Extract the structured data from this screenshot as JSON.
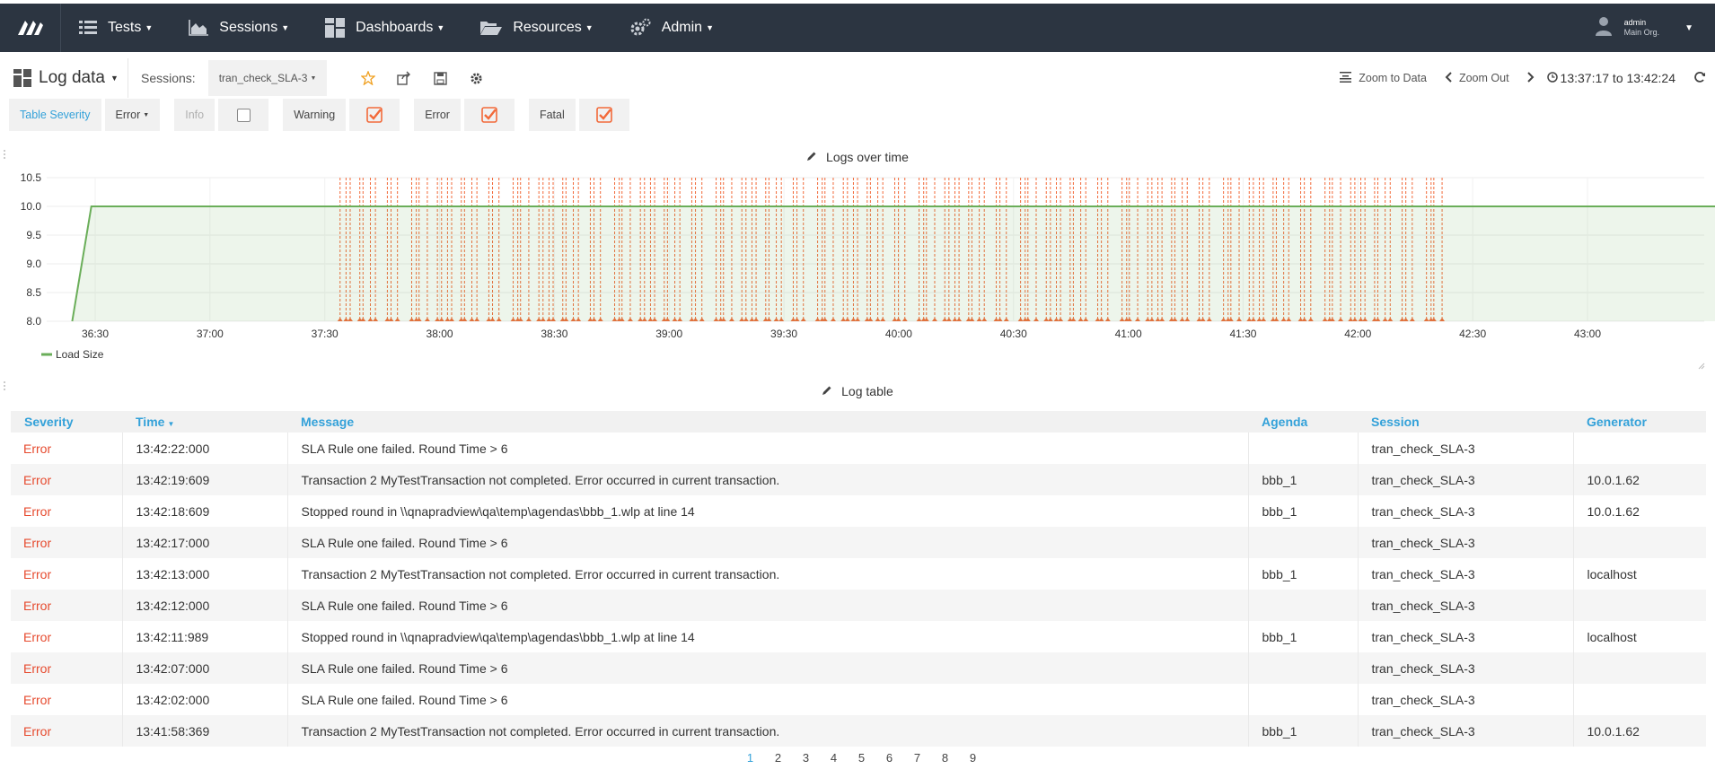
{
  "nav": {
    "items": [
      {
        "label": "Tests",
        "icon": "list-icon"
      },
      {
        "label": "Sessions",
        "icon": "area-chart-icon"
      },
      {
        "label": "Dashboards",
        "icon": "dashboard-grid-icon"
      },
      {
        "label": "Resources",
        "icon": "folder-open-icon"
      },
      {
        "label": "Admin",
        "icon": "gears-icon"
      }
    ],
    "user": {
      "name": "admin",
      "org": "Main Org."
    }
  },
  "toolbar": {
    "dashboard_title": "Log data",
    "sessions_label": "Sessions:",
    "session_value": "tran_check_SLA-3",
    "zoom_to_data": "Zoom to Data",
    "zoom_out": "Zoom Out",
    "time_range": "13:37:17 to 13:42:24"
  },
  "filters": {
    "table_severity_label": "Table Severity",
    "table_severity_value": "Error",
    "items": [
      {
        "label": "Info",
        "checked": false
      },
      {
        "label": "Warning",
        "checked": true
      },
      {
        "label": "Error",
        "checked": true
      },
      {
        "label": "Fatal",
        "checked": true
      }
    ]
  },
  "chart_panel": {
    "title": "Logs over time"
  },
  "chart_data": {
    "type": "line",
    "title": "Logs over time",
    "x_tick_labels": [
      "36:30",
      "37:00",
      "37:30",
      "38:00",
      "38:30",
      "39:00",
      "39:30",
      "40:00",
      "40:30",
      "41:00",
      "41:30",
      "42:00",
      "42:30",
      "43:00"
    ],
    "y_tick_labels": [
      "10.5",
      "10.0",
      "9.5",
      "9.0",
      "8.5",
      "8.0"
    ],
    "ylim": [
      8.0,
      10.5
    ],
    "series": [
      {
        "name": "Load Size",
        "color": "#6aae59",
        "points": [
          [
            "13:36:24",
            8.0
          ],
          [
            "13:36:29",
            10.0
          ],
          [
            "13:43:47",
            10.0
          ]
        ]
      }
    ],
    "annotations": {
      "color": "#f26a3a",
      "description": "Error log markers (vertical dashed lines) between 13:37:34 and 13:42:22",
      "start": "13:37:34",
      "end": "13:42:22"
    },
    "legend": "bottom-left",
    "grid": true
  },
  "table_panel": {
    "title": "Log table"
  },
  "log_table": {
    "columns": [
      "Severity",
      "Time",
      "Message",
      "Agenda",
      "Session",
      "Generator"
    ],
    "rows": [
      [
        "Error",
        "13:42:22:000",
        "SLA Rule one failed. Round Time > 6",
        "",
        "tran_check_SLA-3",
        ""
      ],
      [
        "Error",
        "13:42:19:609",
        "Transaction 2 MyTestTransaction not completed. Error occurred in current transaction.",
        "bbb_1",
        "tran_check_SLA-3",
        "10.0.1.62"
      ],
      [
        "Error",
        "13:42:18:609",
        "Stopped round in \\\\qnapradview\\qa\\temp\\agendas\\bbb_1.wlp at line 14",
        "bbb_1",
        "tran_check_SLA-3",
        "10.0.1.62"
      ],
      [
        "Error",
        "13:42:17:000",
        "SLA Rule one failed. Round Time > 6",
        "",
        "tran_check_SLA-3",
        ""
      ],
      [
        "Error",
        "13:42:13:000",
        "Transaction 2 MyTestTransaction not completed. Error occurred in current transaction.",
        "bbb_1",
        "tran_check_SLA-3",
        "localhost"
      ],
      [
        "Error",
        "13:42:12:000",
        "SLA Rule one failed. Round Time > 6",
        "",
        "tran_check_SLA-3",
        ""
      ],
      [
        "Error",
        "13:42:11:989",
        "Stopped round in \\\\qnapradview\\qa\\temp\\agendas\\bbb_1.wlp at line 14",
        "bbb_1",
        "tran_check_SLA-3",
        "localhost"
      ],
      [
        "Error",
        "13:42:07:000",
        "SLA Rule one failed. Round Time > 6",
        "",
        "tran_check_SLA-3",
        ""
      ],
      [
        "Error",
        "13:42:02:000",
        "SLA Rule one failed. Round Time > 6",
        "",
        "tran_check_SLA-3",
        ""
      ],
      [
        "Error",
        "13:41:58:369",
        "Transaction 2 MyTestTransaction not completed. Error occurred in current transaction.",
        "bbb_1",
        "tran_check_SLA-3",
        "10.0.1.62"
      ]
    ]
  },
  "pager": {
    "pages": [
      "1",
      "2",
      "3",
      "4",
      "5",
      "6",
      "7",
      "8",
      "9"
    ],
    "current": "1"
  },
  "colors": {
    "navbar": "#2c3541",
    "accent": "#33a1d9",
    "error": "#e64a2e",
    "check": "#f26a3a",
    "series": "#6aae59"
  }
}
